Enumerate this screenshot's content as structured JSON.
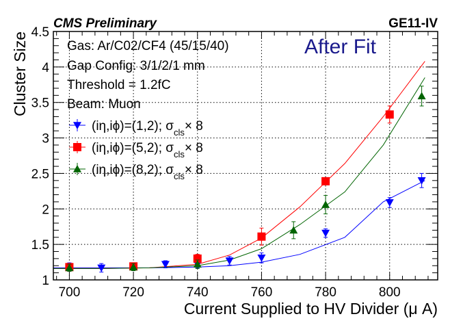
{
  "header": {
    "left": "CMS Preliminary",
    "right": "GE11-IV"
  },
  "annotation": {
    "text": "After Fit",
    "color": "#1a1a8c"
  },
  "info_lines": [
    "Gas: Ar/C02/CF4 (45/15/40)",
    "Gap Config: 3/1/2/1 mm",
    "Threshold = 1.2fC",
    "Beam: Muon"
  ],
  "legend": [
    {
      "prefix": "(iη,iϕ)=(1,2); σ",
      "sub": "cls",
      "suffix": "× 8",
      "marker": "triangle-down",
      "color": "#0000ff"
    },
    {
      "prefix": "(iη,iϕ)=(5,2); σ",
      "sub": "cls",
      "suffix": "× 8",
      "marker": "square",
      "color": "#ff0000"
    },
    {
      "prefix": "(iη,iϕ)=(8,2); σ",
      "sub": "cls",
      "suffix": "× 8",
      "marker": "triangle-up",
      "color": "#006400"
    }
  ],
  "chart_data": {
    "type": "scatter",
    "xlabel": "Current Supplied to HV Divider (μ A)",
    "ylabel": "Cluster Size",
    "xlim": [
      695,
      815
    ],
    "ylim": [
      1.0,
      4.5
    ],
    "xticks": [
      "700",
      "720",
      "740",
      "760",
      "780",
      "800"
    ],
    "xtick_values": [
      700,
      720,
      740,
      760,
      780,
      800
    ],
    "yticks": [
      "1",
      "1.5",
      "2",
      "2.5",
      "3",
      "3.5",
      "4",
      "4.5"
    ],
    "ytick_values": [
      1,
      1.5,
      2,
      2.5,
      3,
      3.5,
      4,
      4.5
    ],
    "grid": true,
    "legend_position": "top-left",
    "series": [
      {
        "name": "(iη,iϕ)=(1,2); σcls× 8",
        "color": "#0000ff",
        "marker": "triangle-down",
        "x": [
          700,
          710,
          720,
          730,
          740,
          750,
          760,
          780,
          800,
          810
        ],
        "y": [
          1.18,
          1.17,
          1.18,
          1.22,
          1.22,
          1.27,
          1.31,
          1.66,
          2.09,
          2.4
        ],
        "err": [
          0.06,
          0.06,
          0.05,
          0.05,
          0.05,
          0.06,
          0.07,
          0.06,
          0.07,
          0.1
        ],
        "fit": [
          1.17,
          1.17,
          1.17,
          1.18,
          1.2,
          1.25,
          1.36,
          1.6,
          2.1,
          2.4
        ]
      },
      {
        "name": "(iη,iϕ)=(5,2); σcls× 8",
        "color": "#ff0000",
        "marker": "square",
        "x": [
          700,
          720,
          740,
          760,
          780,
          800
        ],
        "y": [
          1.18,
          1.19,
          1.3,
          1.61,
          2.39,
          3.33
        ],
        "err": [
          0.05,
          0.05,
          0.06,
          0.12,
          0.05,
          0.12
        ],
        "fit": [
          1.16,
          1.16,
          1.17,
          1.22,
          1.35,
          1.59,
          2.03,
          2.64,
          3.3,
          4.08
        ]
      },
      {
        "name": "(iη,iϕ)=(8,2); σcls× 8",
        "color": "#006400",
        "marker": "triangle-up",
        "x": [
          700,
          720,
          740,
          770,
          780,
          810
        ],
        "y": [
          1.17,
          1.18,
          1.22,
          1.7,
          2.06,
          3.59
        ],
        "err": [
          0.05,
          0.05,
          0.06,
          0.12,
          0.13,
          0.14
        ],
        "fit": [
          1.16,
          1.16,
          1.17,
          1.2,
          1.28,
          1.44,
          1.78,
          2.24,
          2.9,
          3.85
        ]
      }
    ],
    "fit_x": [
      695,
      710,
      725,
      740,
      750,
      760,
      772,
      786,
      798,
      811
    ]
  }
}
